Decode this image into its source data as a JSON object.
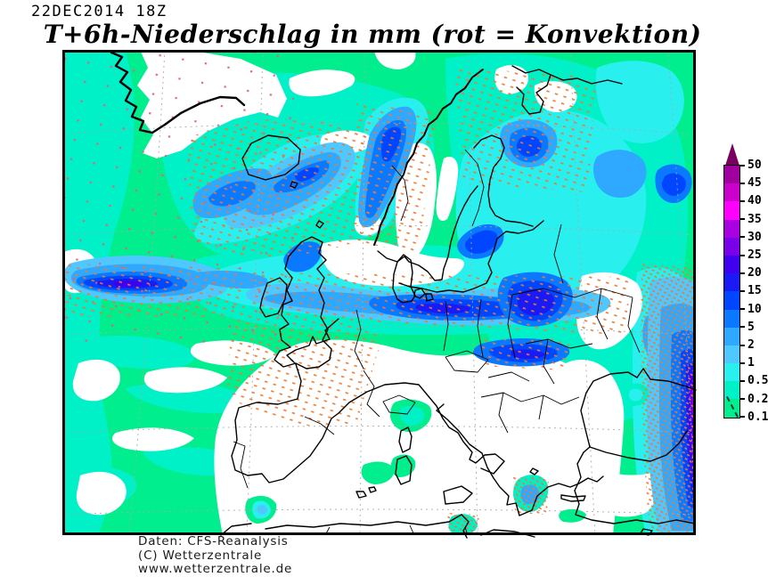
{
  "header": {
    "timestamp": "22DEC2014 18Z",
    "title": "T+6h-Niederschlag in mm (rot = Konvektion)"
  },
  "legend": {
    "unit": "mm",
    "labels_top_to_bottom": [
      "50",
      "45",
      "40",
      "35",
      "30",
      "25",
      "20",
      "15",
      "10",
      "5",
      "2",
      "1",
      "0.5",
      "0.2",
      "0.1"
    ],
    "segment_colors_top_to_bottom": [
      "#A000A0",
      "#CC00CC",
      "#FF00FF",
      "#A800E0",
      "#7A00EA",
      "#4000F0",
      "#1A1AF5",
      "#0046FF",
      "#0A78FF",
      "#2FA8FF",
      "#4FC8FF",
      "#2AEFEF",
      "#00F0C8",
      "#00EE8E"
    ],
    "arrow_color": "#7A0060"
  },
  "map": {
    "coast_color": "#000000",
    "grid_color": "#A8A8A8",
    "convection_color": "#F07830",
    "no_precip_color": "#FFFFFF"
  },
  "footer": {
    "lines": [
      "Daten: CFS-Reanalysis",
      "(C) Wetterzentrale",
      "www.wetterzentrale.de"
    ]
  }
}
